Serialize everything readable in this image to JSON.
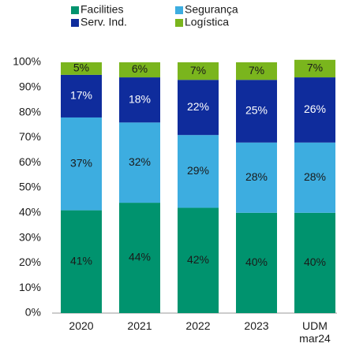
{
  "chart_data": {
    "type": "stacked_bar",
    "categories": [
      "2020",
      "2021",
      "2022",
      "2023",
      "UDM mar24"
    ],
    "series": [
      {
        "name": "Facilities",
        "color": "#00936e",
        "label_color": "#1a1a1a",
        "values": [
          41,
          44,
          42,
          40,
          40
        ],
        "value_labels": [
          "41%",
          "44%",
          "42%",
          "40%",
          "40%"
        ]
      },
      {
        "name": "Segurança",
        "color": "#3dade0",
        "label_color": "#1a1a1a",
        "values": [
          37,
          32,
          29,
          28,
          28
        ],
        "value_labels": [
          "37%",
          "32%",
          "29%",
          "28%",
          "28%"
        ]
      },
      {
        "name": "Serv. Ind.",
        "color": "#0f2c9c",
        "label_color": "#ffffff",
        "values": [
          17,
          18,
          22,
          25,
          26
        ],
        "value_labels": [
          "17%",
          "18%",
          "22%",
          "25%",
          "26%"
        ]
      },
      {
        "name": "Logística",
        "color": "#7ab51d",
        "label_color": "#1a1a1a",
        "values": [
          5,
          6,
          7,
          7,
          7
        ],
        "value_labels": [
          "5%",
          "6%",
          "7%",
          "7%",
          "7%"
        ]
      }
    ],
    "ylim": [
      0,
      100
    ],
    "yticks": [
      {
        "value": 0,
        "label": "0%"
      },
      {
        "value": 10,
        "label": "10%"
      },
      {
        "value": 20,
        "label": "20%"
      },
      {
        "value": 30,
        "label": "30%"
      },
      {
        "value": 40,
        "label": "40%"
      },
      {
        "value": 50,
        "label": "50%"
      },
      {
        "value": 60,
        "label": "60%"
      },
      {
        "value": 70,
        "label": "70%"
      },
      {
        "value": 80,
        "label": "80%"
      },
      {
        "value": 90,
        "label": "90%"
      },
      {
        "value": 100,
        "label": "100%"
      }
    ],
    "grid": false
  }
}
